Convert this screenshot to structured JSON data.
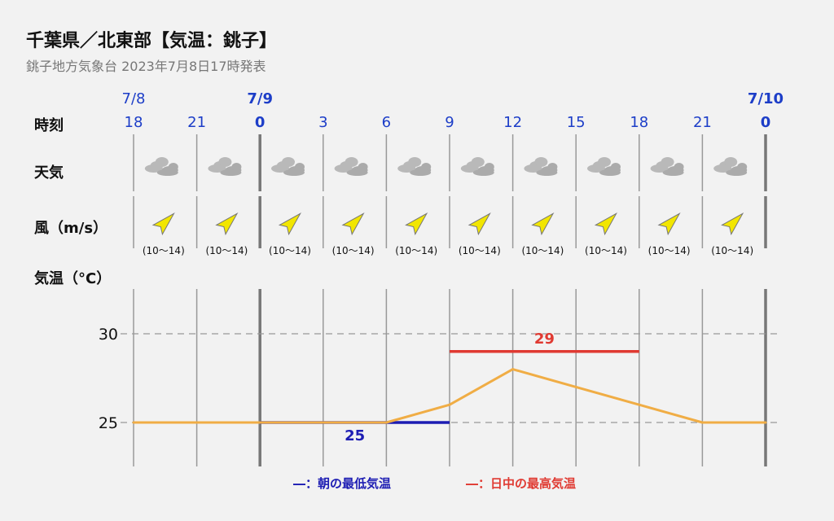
{
  "header": {
    "title": "千葉県／北東部【気温：銚子】",
    "subtitle": "銚子地方気象台 2023年7月8日17時発表"
  },
  "row_labels": {
    "time": "時刻",
    "weather": "天気",
    "wind": "風（m/s）",
    "temperature": "気温（°C）"
  },
  "chart_data": {
    "type": "line",
    "date_labels": [
      {
        "index": 0,
        "text": "7/8",
        "bold": false
      },
      {
        "index": 2,
        "text": "7/9",
        "bold": true
      },
      {
        "index": 10,
        "text": "7/10",
        "bold": true
      }
    ],
    "x": [
      "18",
      "21",
      "0",
      "3",
      "6",
      "9",
      "12",
      "15",
      "18",
      "21",
      "0"
    ],
    "day_start_indices": [
      2,
      10
    ],
    "weather": [
      "cloud-icon",
      "cloud-icon",
      "cloud-icon",
      "cloud-icon",
      "cloud-icon",
      "cloud-icon",
      "cloud-icon",
      "cloud-icon",
      "cloud-icon",
      "cloud-icon"
    ],
    "wind_direction": "southwest",
    "wind": [
      "(10〜14)",
      "(10〜14)",
      "(10〜14)",
      "(10〜14)",
      "(10〜14)",
      "(10〜14)",
      "(10〜14)",
      "(10〜14)",
      "(10〜14)",
      "(10〜14)"
    ],
    "series": [
      {
        "values": [
          25,
          25,
          25,
          25,
          25,
          26,
          28,
          27,
          26,
          25,
          25
        ],
        "color": "#f0ad45"
      }
    ],
    "min_temp": {
      "value": 25,
      "label": "25",
      "from_index": 2,
      "to_index": 5,
      "color": "#1d1db3"
    },
    "max_temp": {
      "value": 29,
      "label": "29",
      "from_index": 5,
      "to_index": 8,
      "color": "#e03a32"
    },
    "y_ticks": [
      25,
      30
    ],
    "ylim": [
      23.5,
      32.5
    ],
    "accent_color": "#1d3ec8",
    "legend": [
      {
        "label": "―：朝の最低気温",
        "color": "#1d1db3"
      },
      {
        "label": "―：日中の最高気温",
        "color": "#e03a32"
      }
    ]
  }
}
